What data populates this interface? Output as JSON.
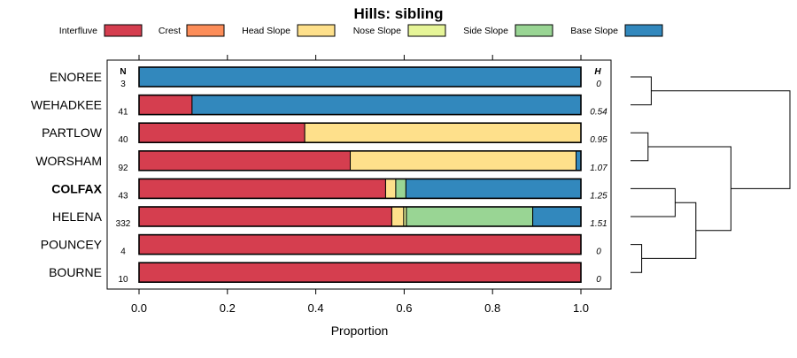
{
  "chart_data": {
    "type": "bar",
    "orientation": "horizontal-stacked",
    "title": "Hills: sibling",
    "xlabel": "Proportion",
    "xlim": [
      0,
      1
    ],
    "xticks": [
      "0.0",
      "0.2",
      "0.4",
      "0.6",
      "0.8",
      "1.0"
    ],
    "xtick_values": [
      0,
      0.2,
      0.4,
      0.6,
      0.8,
      1.0
    ],
    "n_header": "N",
    "h_header": "H",
    "legend": [
      {
        "name": "Interfluve",
        "color": "#D53E4F"
      },
      {
        "name": "Crest",
        "color": "#FC8D59"
      },
      {
        "name": "Head Slope",
        "color": "#FEE08B"
      },
      {
        "name": "Nose Slope",
        "color": "#E6F598"
      },
      {
        "name": "Side Slope",
        "color": "#99D594"
      },
      {
        "name": "Base Slope",
        "color": "#3288BD"
      }
    ],
    "categories": [
      "ENOREE",
      "WEHADKEE",
      "PARTLOW",
      "WORSHAM",
      "COLFAX",
      "HELENA",
      "POUNCEY",
      "BOURNE"
    ],
    "highlighted": "COLFAX",
    "n": [
      "3",
      "41",
      "40",
      "92",
      "43",
      "332",
      "4",
      "10"
    ],
    "h": [
      "0",
      "0.54",
      "0.95",
      "1.07",
      "1.25",
      "1.51",
      "0",
      "0"
    ],
    "series": [
      {
        "name": "Interfluve",
        "values": [
          0,
          0.12,
          0.375,
          0.478,
          0.558,
          0.572,
          1,
          1
        ]
      },
      {
        "name": "Crest",
        "values": [
          0,
          0,
          0,
          0,
          0,
          0,
          0,
          0
        ]
      },
      {
        "name": "Head Slope",
        "values": [
          0,
          0,
          0.625,
          0.511,
          0.023,
          0.027,
          0,
          0
        ]
      },
      {
        "name": "Nose Slope",
        "values": [
          0,
          0,
          0,
          0,
          0,
          0.006,
          0,
          0
        ]
      },
      {
        "name": "Side Slope",
        "values": [
          0,
          0,
          0,
          0,
          0.023,
          0.286,
          0,
          0
        ]
      },
      {
        "name": "Base Slope",
        "values": [
          1,
          0.88,
          0,
          0.011,
          0.396,
          0.109,
          0,
          0
        ]
      }
    ],
    "dendrogram": {
      "merges": [
        {
          "a": 0,
          "b": 1,
          "height": 0.13
        },
        {
          "a": 2,
          "b": 3,
          "height": 0.11
        },
        {
          "a": 4,
          "b": 5,
          "height": 0.28
        },
        {
          "a": 6,
          "b": 7,
          "height": 0.07
        },
        {
          "a": "g2",
          "b": "g3",
          "height": 0.41
        },
        {
          "a": "g1",
          "b": "g4",
          "height": 0.63
        },
        {
          "a": "g0",
          "b": "g5",
          "height": 1.0
        }
      ]
    }
  }
}
